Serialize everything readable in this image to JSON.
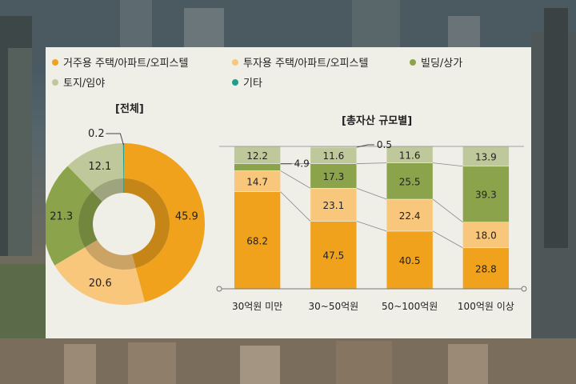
{
  "colors": {
    "residential": "#f0a21c",
    "investment": "#f8c77b",
    "building": "#8ba34a",
    "land": "#bfc89a",
    "other": "#1f9e8e"
  },
  "legend": [
    {
      "label": "거주용 주택/아파트/오피스텔",
      "color": "#f0a21c"
    },
    {
      "label": "투자용 주택/아파트/오피스텔",
      "color": "#f8c77b"
    },
    {
      "label": "빌딩/상가",
      "color": "#8ba34a"
    },
    {
      "label": "토지/임야",
      "color": "#bfc89a"
    },
    {
      "label": "기타",
      "color": "#1f9e8e"
    }
  ],
  "chart_data": [
    {
      "type": "pie",
      "title": "[전체]",
      "slices": [
        {
          "name": "거주용 주택/아파트/오피스텔",
          "value": 45.9,
          "color": "#f0a21c"
        },
        {
          "name": "투자용 주택/아파트/오피스텔",
          "value": 20.6,
          "color": "#f8c77b"
        },
        {
          "name": "빌딩/상가",
          "value": 21.3,
          "color": "#8ba34a"
        },
        {
          "name": "토지/임야",
          "value": 12.1,
          "color": "#bfc89a"
        },
        {
          "name": "기타",
          "value": 0.2,
          "color": "#1f9e8e"
        }
      ]
    },
    {
      "type": "bar",
      "stacked": true,
      "title": "[총자산 규모별]",
      "categories": [
        "30억원 미만",
        "30~50억원",
        "50~100억원",
        "100억원 이상"
      ],
      "series": [
        {
          "name": "거주용 주택/아파트/오피스텔",
          "color": "#f0a21c",
          "values": [
            68.2,
            47.5,
            40.5,
            28.8
          ]
        },
        {
          "name": "투자용 주택/아파트/오피스텔",
          "color": "#f8c77b",
          "values": [
            14.7,
            23.1,
            22.4,
            18.0
          ]
        },
        {
          "name": "빌딩/상가",
          "color": "#8ba34a",
          "values": [
            4.9,
            17.3,
            25.5,
            39.3
          ]
        },
        {
          "name": "토지/임야",
          "color": "#bfc89a",
          "values": [
            12.2,
            11.6,
            11.6,
            13.9
          ]
        },
        {
          "name": "기타",
          "color": "#1f9e8e",
          "values": [
            0,
            0.5,
            0,
            0
          ]
        }
      ],
      "value_labels": [
        [
          "68.2",
          "14.7",
          "4.9",
          "12.2",
          ""
        ],
        [
          "47.5",
          "23.1",
          "17.3",
          "11.6",
          "0.5"
        ],
        [
          "40.5",
          "22.4",
          "25.5",
          "11.6",
          ""
        ],
        [
          "28.8",
          "18.0",
          "39.3",
          "13.9",
          ""
        ]
      ],
      "ylim": [
        0,
        100
      ]
    }
  ]
}
